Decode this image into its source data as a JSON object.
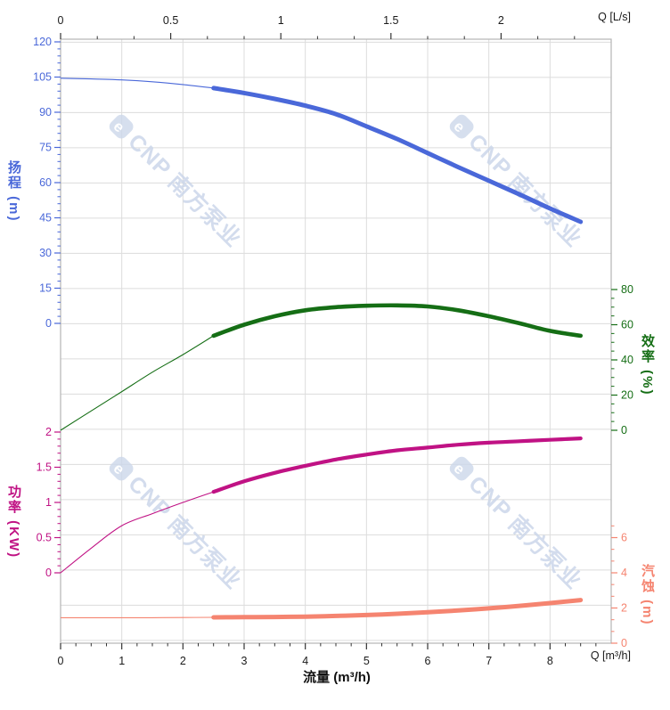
{
  "watermark": {
    "logo_letter": "e",
    "text": "CNP 南方泵业",
    "color": "#ccd7ea"
  },
  "chart_data": {
    "type": "line",
    "title": "",
    "grid": true,
    "axes": {
      "top": {
        "unit_label": "Q [L/s]",
        "ticks": [
          "0",
          "0.5",
          "1",
          "1.5",
          "2"
        ],
        "range": [
          0,
          2.25
        ],
        "color": "#1a1a1a"
      },
      "bottom": {
        "unit_label": "Q [m³/h]",
        "title": "流量 (m³/h)",
        "ticks": [
          "0",
          "1",
          "2",
          "3",
          "4",
          "5",
          "6",
          "7",
          "8"
        ],
        "range": [
          0,
          9
        ],
        "color": "#1a1a1a"
      },
      "head": {
        "title": "扬程 (m)",
        "ticks": [
          "0",
          "15",
          "30",
          "45",
          "60",
          "75",
          "90",
          "105",
          "120"
        ],
        "range": [
          0,
          120
        ],
        "color": "#4a68d9"
      },
      "power": {
        "title": "功率 (KW)",
        "ticks": [
          "0",
          "0.5",
          "1",
          "1.5",
          "2"
        ],
        "range": [
          0,
          2
        ],
        "color": "#c01284"
      },
      "eff": {
        "title": "效率 (%)",
        "ticks": [
          "0",
          "20",
          "40",
          "60",
          "80"
        ],
        "range": [
          0,
          80
        ],
        "color": "#156e15"
      },
      "npsh": {
        "title": "汽蚀 (m)",
        "ticks": [
          "0",
          "2",
          "4",
          "6"
        ],
        "range": [
          0,
          6
        ],
        "color": "#f58470"
      }
    },
    "series": [
      {
        "name": "head",
        "axis": "head",
        "color": "#4a68d9",
        "thin_until": 2.5,
        "thick_width": 5,
        "points": [
          [
            0,
            104.5
          ],
          [
            0.5,
            104.2
          ],
          [
            1,
            103.8
          ],
          [
            1.5,
            103.0
          ],
          [
            2,
            101.8
          ],
          [
            2.5,
            100.3
          ],
          [
            3,
            98.2
          ],
          [
            3.5,
            95.7
          ],
          [
            4,
            92.8
          ],
          [
            4.5,
            89.2
          ],
          [
            5,
            84.0
          ],
          [
            5.5,
            78.6
          ],
          [
            6,
            72.6
          ],
          [
            6.5,
            66.6
          ],
          [
            7,
            60.8
          ],
          [
            7.5,
            55.0
          ],
          [
            8,
            49.0
          ],
          [
            8.5,
            43.3
          ]
        ]
      },
      {
        "name": "efficiency",
        "axis": "eff",
        "color": "#156e15",
        "thin_until": 2.5,
        "thick_width": 4.6,
        "points": [
          [
            0,
            0
          ],
          [
            0.5,
            11
          ],
          [
            1,
            22
          ],
          [
            1.5,
            33
          ],
          [
            2,
            43
          ],
          [
            2.5,
            53.7
          ],
          [
            3,
            60
          ],
          [
            3.5,
            64.8
          ],
          [
            4,
            68.2
          ],
          [
            4.5,
            70
          ],
          [
            5,
            70.8
          ],
          [
            5.5,
            71
          ],
          [
            6,
            70.4
          ],
          [
            6.5,
            68.2
          ],
          [
            7,
            64.8
          ],
          [
            7.5,
            60.8
          ],
          [
            8,
            56.5
          ],
          [
            8.5,
            53.7
          ]
        ]
      },
      {
        "name": "power",
        "axis": "power",
        "color": "#c01284",
        "thin_until": 2.5,
        "thick_width": 4.2,
        "points": [
          [
            0,
            0
          ],
          [
            0.5,
            0.35
          ],
          [
            1,
            0.67
          ],
          [
            1.5,
            0.84
          ],
          [
            2,
            1.0
          ],
          [
            2.5,
            1.15
          ],
          [
            3,
            1.3
          ],
          [
            3.5,
            1.42
          ],
          [
            4,
            1.52
          ],
          [
            4.5,
            1.61
          ],
          [
            5,
            1.68
          ],
          [
            5.5,
            1.74
          ],
          [
            6,
            1.78
          ],
          [
            6.5,
            1.82
          ],
          [
            7,
            1.85
          ],
          [
            7.5,
            1.87
          ],
          [
            8,
            1.89
          ],
          [
            8.5,
            1.91
          ]
        ]
      },
      {
        "name": "npsh",
        "axis": "npsh",
        "color": "#f58470",
        "thin_until": 2.5,
        "thick_width": 5,
        "points": [
          [
            0,
            1.45
          ],
          [
            0.5,
            1.45
          ],
          [
            1,
            1.45
          ],
          [
            1.5,
            1.45
          ],
          [
            2,
            1.46
          ],
          [
            2.5,
            1.47
          ],
          [
            3,
            1.48
          ],
          [
            3.5,
            1.49
          ],
          [
            4,
            1.51
          ],
          [
            4.5,
            1.55
          ],
          [
            5,
            1.6
          ],
          [
            5.5,
            1.67
          ],
          [
            6,
            1.76
          ],
          [
            6.5,
            1.86
          ],
          [
            7,
            1.98
          ],
          [
            7.5,
            2.12
          ],
          [
            8,
            2.28
          ],
          [
            8.5,
            2.45
          ]
        ]
      }
    ]
  }
}
